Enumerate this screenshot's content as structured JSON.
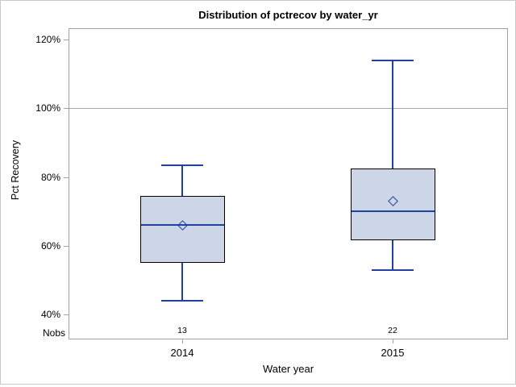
{
  "title": "Distribution of pctrecov by water_yr",
  "y_axis": {
    "label": "Pct Recovery",
    "tick_labels": [
      "40%",
      "60%",
      "80%",
      "100%",
      "120%"
    ]
  },
  "x_axis": {
    "label": "Water year",
    "categories": [
      "2014",
      "2015"
    ]
  },
  "nobs": {
    "label": "Nobs",
    "values": [
      "13",
      "22"
    ]
  },
  "colors": {
    "box_fill": "#ccd6e6",
    "box_border": "#000000",
    "line_blue": "#20419f",
    "axis_gray": "#a3a3a3",
    "ref_line_gray": "#a6a6a6",
    "outer_border": "#c9c9c9",
    "text": "#000000"
  },
  "chart_data": {
    "type": "box",
    "title": "Distribution of pctrecov by water_yr",
    "xlabel": "Water year",
    "ylabel": "Pct Recovery",
    "ylim": [
      40,
      120
    ],
    "yticks": [
      40,
      60,
      80,
      100,
      120
    ],
    "ytick_format": "percent",
    "grid": "none",
    "legend": "none",
    "reference_lines": [
      100
    ],
    "categories": [
      "2014",
      "2015"
    ],
    "series": [
      {
        "category": "2014",
        "nobs": 13,
        "whisker_low": 44,
        "q1": 55,
        "median": 66,
        "mean": 66,
        "q3": 74.5,
        "whisker_high": 83.5
      },
      {
        "category": "2015",
        "nobs": 22,
        "whisker_low": 53,
        "q1": 61.5,
        "median": 70,
        "mean": 73,
        "q3": 82.5,
        "whisker_high": 114
      }
    ]
  }
}
